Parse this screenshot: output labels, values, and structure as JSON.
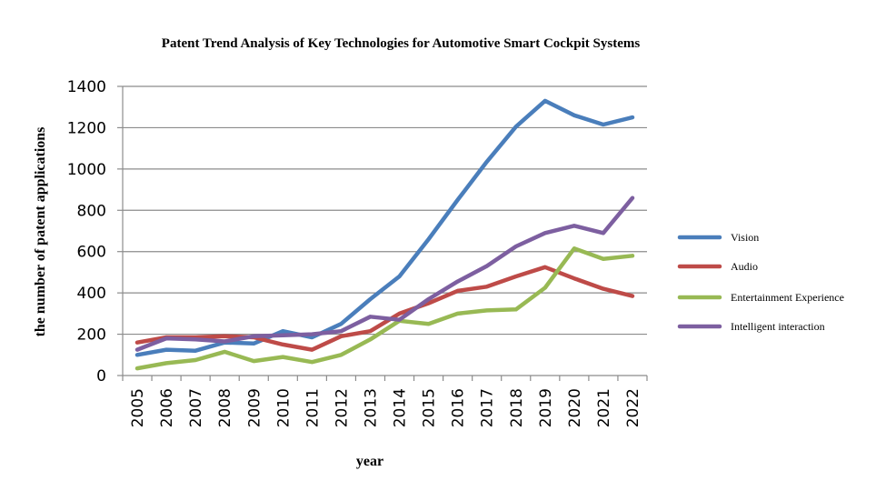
{
  "chart_data": {
    "type": "line",
    "title": "Patent Trend Analysis of Key Technologies for Automotive Smart Cockpit Systems",
    "xlabel": "year",
    "ylabel": "the  number of patent applications",
    "categories": [
      "2005",
      "2006",
      "2007",
      "2008",
      "2009",
      "2010",
      "2011",
      "2012",
      "2013",
      "2014",
      "2015",
      "2016",
      "2017",
      "2018",
      "2019",
      "2020",
      "2021",
      "2022"
    ],
    "ylim": [
      0,
      1400
    ],
    "yticks": [
      0,
      200,
      400,
      600,
      800,
      1000,
      1200,
      1400
    ],
    "grid": "horizontal",
    "legend": "right",
    "series": [
      {
        "name": "Vision",
        "color": "#4a7ebb",
        "values": [
          100,
          125,
          120,
          160,
          155,
          215,
          185,
          250,
          370,
          480,
          660,
          850,
          1035,
          1205,
          1330,
          1260,
          1215,
          1250
        ]
      },
      {
        "name": "Audio",
        "color": "#be4b48",
        "values": [
          160,
          185,
          185,
          190,
          185,
          150,
          125,
          190,
          215,
          300,
          350,
          410,
          430,
          480,
          525,
          470,
          420,
          385
        ]
      },
      {
        "name": "Entertainment Experience",
        "color": "#98b954",
        "values": [
          35,
          60,
          75,
          115,
          70,
          90,
          65,
          100,
          175,
          265,
          250,
          300,
          315,
          320,
          425,
          615,
          565,
          580
        ]
      },
      {
        "name": "Intelligent interaction",
        "color": "#7d5fa0",
        "values": [
          125,
          180,
          175,
          165,
          190,
          195,
          200,
          215,
          285,
          270,
          370,
          455,
          530,
          625,
          690,
          725,
          690,
          860
        ]
      }
    ]
  }
}
